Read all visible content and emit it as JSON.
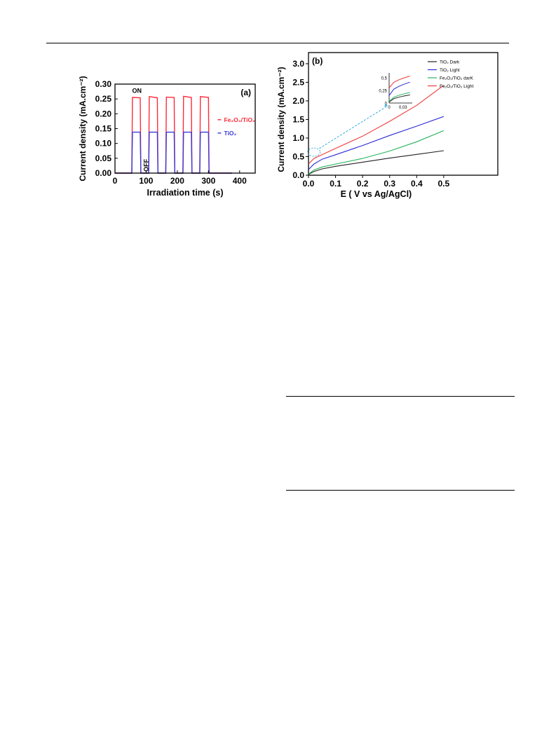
{
  "chart_data": [
    {
      "type": "line",
      "panel_label": "(a)",
      "xlabel": "Irradiation time (s)",
      "ylabel": "Current density (mA.cm⁻²)",
      "xlim": [
        0,
        450
      ],
      "ylim": [
        0,
        0.3
      ],
      "xticks": [
        "0",
        "100",
        "200",
        "300",
        "400"
      ],
      "yticks": [
        "0.00",
        "0.05",
        "0.10",
        "0.15",
        "0.20",
        "0.25",
        "0.30"
      ],
      "annotations": [
        "ON",
        "OFF"
      ],
      "series": [
        {
          "name": "Fe₂O₃/TiO₂",
          "color": "#ff2a3a",
          "x": [
            0,
            54,
            56,
            81,
            83,
            108,
            110,
            136,
            138,
            163,
            165,
            190,
            192,
            218,
            220,
            245,
            247,
            272,
            274,
            300,
            302,
            327,
            329,
            375
          ],
          "y": [
            0,
            0,
            0.255,
            0.254,
            0,
            0,
            0.258,
            0.254,
            0,
            0,
            0.256,
            0.255,
            0,
            0,
            0.259,
            0.255,
            0,
            0,
            0.258,
            0.255,
            0,
            0,
            0,
            0
          ]
        },
        {
          "name": "TiO₂",
          "color": "#3a3ad8",
          "x": [
            0,
            54,
            56,
            81,
            83,
            108,
            110,
            136,
            138,
            163,
            165,
            190,
            192,
            218,
            220,
            245,
            247,
            272,
            274,
            300,
            302,
            327,
            329,
            375
          ],
          "y": [
            0,
            0,
            0.138,
            0.138,
            0,
            0,
            0.138,
            0.138,
            0,
            0,
            0.138,
            0.138,
            0,
            0,
            0.138,
            0.138,
            0,
            0,
            0.138,
            0.138,
            0,
            0,
            0,
            0
          ]
        }
      ]
    },
    {
      "type": "line",
      "panel_label": "(b)",
      "xlabel": "E ( V vs Ag/AgCl)",
      "ylabel": "Current density (mA.cm⁻²)",
      "xlim": [
        0,
        0.7
      ],
      "ylim": [
        0,
        3.3
      ],
      "xticks": [
        "0.0",
        "0.1",
        "0.2",
        "0.3",
        "0.4",
        "0.5"
      ],
      "yticks": [
        "0.0",
        "0.5",
        "1.0",
        "1.5",
        "2.0",
        "2.5",
        "3.0"
      ],
      "legend_position": "top-right",
      "series": [
        {
          "name": "TiO₂ Dark",
          "color": "#222222",
          "x": [
            0,
            0.02,
            0.05,
            0.1,
            0.2,
            0.3,
            0.4,
            0.5
          ],
          "y": [
            0.02,
            0.1,
            0.17,
            0.24,
            0.35,
            0.46,
            0.56,
            0.66
          ]
        },
        {
          "name": "TiO₂ Light",
          "color": "#2b2bd6",
          "x": [
            0,
            0.02,
            0.05,
            0.1,
            0.2,
            0.3,
            0.4,
            0.5
          ],
          "y": [
            0.15,
            0.3,
            0.43,
            0.55,
            0.8,
            1.07,
            1.32,
            1.58
          ]
        },
        {
          "name": "Fe₂O₃/TiO₂ darK",
          "color": "#22b35a",
          "x": [
            0,
            0.02,
            0.05,
            0.1,
            0.2,
            0.3,
            0.4,
            0.5
          ],
          "y": [
            0.03,
            0.14,
            0.22,
            0.3,
            0.45,
            0.65,
            0.9,
            1.2
          ]
        },
        {
          "name": "Fe₂O₃/TiO₂ Light",
          "color": "#f03a3a",
          "x": [
            0,
            0.02,
            0.05,
            0.1,
            0.2,
            0.3,
            0.4,
            0.5
          ],
          "y": [
            0.3,
            0.45,
            0.55,
            0.72,
            1.05,
            1.45,
            1.88,
            2.42
          ]
        }
      ],
      "inset": {
        "xticks": [
          "0",
          "0,03"
        ],
        "yticks": [
          "0",
          "0,25",
          "0,5"
        ]
      }
    }
  ]
}
